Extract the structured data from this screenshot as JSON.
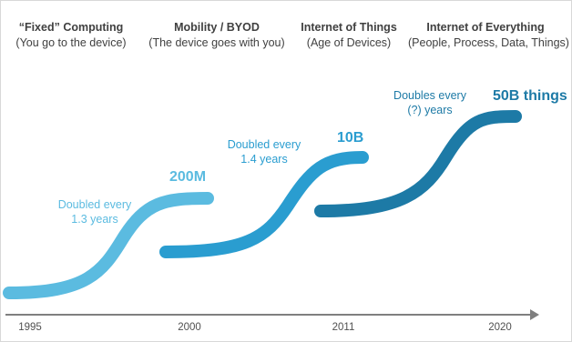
{
  "eras": [
    {
      "title": "“Fixed” Computing",
      "subtitle": "(You go to the device)"
    },
    {
      "title": "Mobility / BYOD",
      "subtitle": "(The device goes with you)"
    },
    {
      "title": "Internet of Things",
      "subtitle": "(Age of Devices)"
    },
    {
      "title": "Internet of Everything",
      "subtitle": "(People, Process, Data, Things)"
    }
  ],
  "stages": [
    {
      "growth_line1": "Doubled every",
      "growth_line2": "1.3 years",
      "milestone": "200M",
      "color": "#5bbbe0"
    },
    {
      "growth_line1": "Doubled every",
      "growth_line2": "1.4 years",
      "milestone": "10B",
      "color": "#2a9dd0"
    },
    {
      "growth_line1": "Doubles every",
      "growth_line2": "(?) years",
      "milestone": "50B things",
      "color": "#1d7aa6"
    }
  ],
  "timeline": {
    "ticks": [
      "1995",
      "2000",
      "2011",
      "2020"
    ],
    "axis_color": "#7f7f7f"
  }
}
